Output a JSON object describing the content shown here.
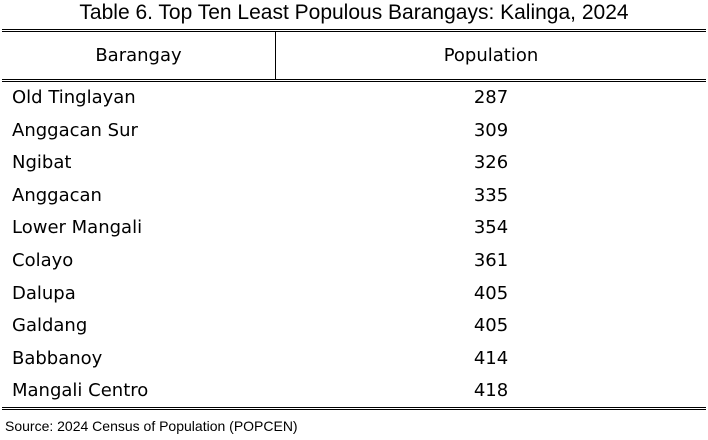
{
  "title": "Table 6. Top Ten Least Populous Barangays: Kalinga, 2024",
  "table": {
    "columns": [
      "Barangay",
      "Population"
    ],
    "rows": [
      [
        "Old Tinglayan",
        287
      ],
      [
        "Anggacan Sur",
        309
      ],
      [
        "Ngibat",
        326
      ],
      [
        "Anggacan",
        335
      ],
      [
        "Lower Mangali",
        354
      ],
      [
        "Colayo",
        361
      ],
      [
        "Dalupa",
        405
      ],
      [
        "Galdang",
        405
      ],
      [
        "Babbanoy",
        414
      ],
      [
        "Mangali Centro",
        418
      ]
    ]
  },
  "source": "Source: 2024 Census of Population (POPCEN)"
}
